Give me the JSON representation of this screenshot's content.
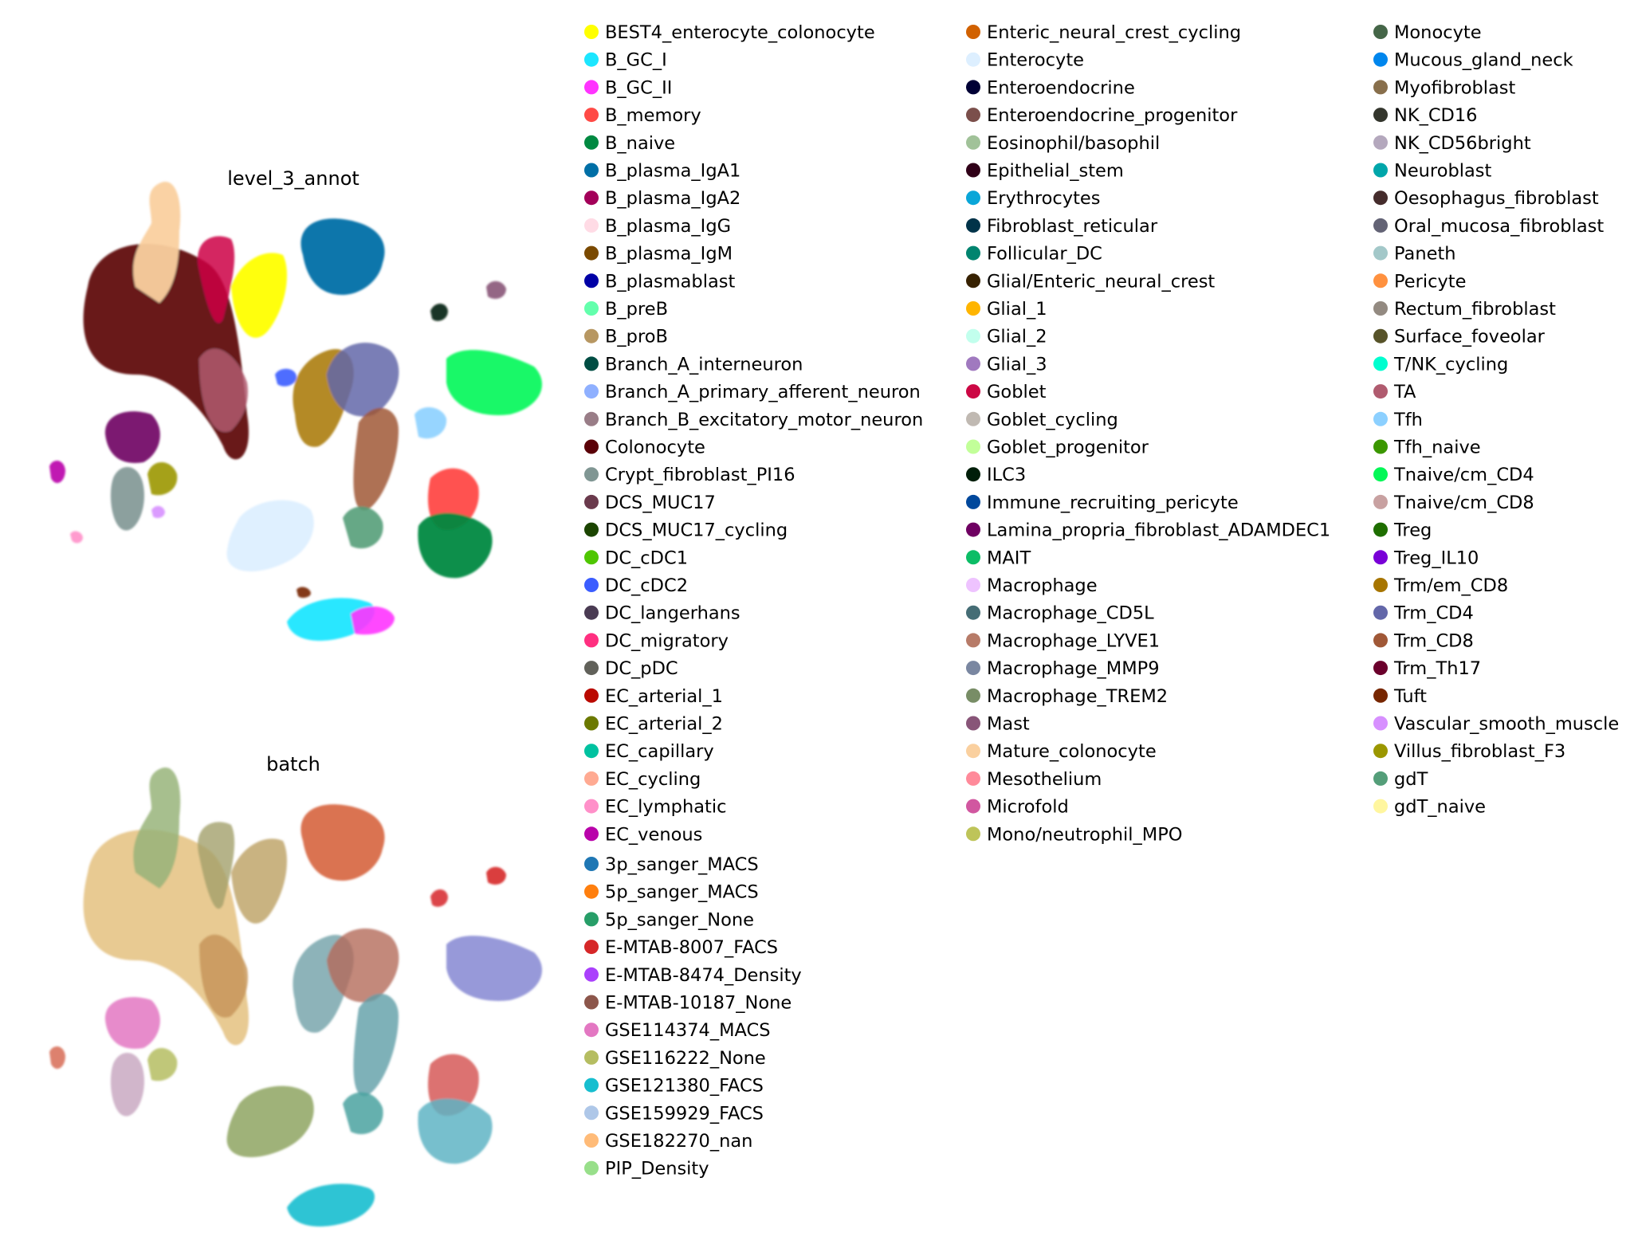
{
  "chart_data": [
    {
      "type": "scatter",
      "title": "level_3_annot",
      "xlabel": "",
      "ylabel": "",
      "grid": false,
      "legend_placement": "right",
      "legend": [
        {
          "label": "BEST4_enterocyte_colonocyte",
          "color": "#FFFF00"
        },
        {
          "label": "B_GC_I",
          "color": "#1CE6FF"
        },
        {
          "label": "B_GC_II",
          "color": "#FF34FF"
        },
        {
          "label": "B_memory",
          "color": "#FF4A46"
        },
        {
          "label": "B_naive",
          "color": "#008941"
        },
        {
          "label": "B_plasma_IgA1",
          "color": "#006FA6"
        },
        {
          "label": "B_plasma_IgA2",
          "color": "#A30059"
        },
        {
          "label": "B_plasma_IgG",
          "color": "#FFDBE5"
        },
        {
          "label": "B_plasma_IgM",
          "color": "#7A4900"
        },
        {
          "label": "B_plasmablast",
          "color": "#0000A6"
        },
        {
          "label": "B_preB",
          "color": "#63FFAC"
        },
        {
          "label": "B_proB",
          "color": "#B79762"
        },
        {
          "label": "Branch_A_interneuron",
          "color": "#004D43"
        },
        {
          "label": "Branch_A_primary_afferent_neuron",
          "color": "#8FB0FF"
        },
        {
          "label": "Branch_B_excitatory_motor_neuron",
          "color": "#997D87"
        },
        {
          "label": "Colonocyte",
          "color": "#5A0007"
        },
        {
          "label": "Crypt_fibroblast_PI16",
          "color": "#809693"
        },
        {
          "label": "DCS_MUC17",
          "color": "#6A3A4C"
        },
        {
          "label": "DCS_MUC17_cycling",
          "color": "#1B4400"
        },
        {
          "label": "DC_cDC1",
          "color": "#4FC601"
        },
        {
          "label": "DC_cDC2",
          "color": "#3B5DFF"
        },
        {
          "label": "DC_langerhans",
          "color": "#4A3B53"
        },
        {
          "label": "DC_migratory",
          "color": "#FF2F80"
        },
        {
          "label": "DC_pDC",
          "color": "#61615A"
        },
        {
          "label": "EC_arterial_1",
          "color": "#BA0900"
        },
        {
          "label": "EC_arterial_2",
          "color": "#6B7900"
        },
        {
          "label": "EC_capillary",
          "color": "#00C2A0"
        },
        {
          "label": "EC_cycling",
          "color": "#FFAA92"
        },
        {
          "label": "EC_lymphatic",
          "color": "#FF90C9"
        },
        {
          "label": "EC_venous",
          "color": "#B903AA"
        },
        {
          "label": "Enteric_neural_crest_cycling",
          "color": "#D16100"
        },
        {
          "label": "Enterocyte",
          "color": "#DDEFFF"
        },
        {
          "label": "Enteroendocrine",
          "color": "#000035"
        },
        {
          "label": "Enteroendocrine_progenitor",
          "color": "#7B4F4B"
        },
        {
          "label": "Eosinophil/basophil",
          "color": "#A1C299"
        },
        {
          "label": "Epithelial_stem",
          "color": "#300018"
        },
        {
          "label": "Erythrocytes",
          "color": "#0AA6D8"
        },
        {
          "label": "Fibroblast_reticular",
          "color": "#013349"
        },
        {
          "label": "Follicular_DC",
          "color": "#00846F"
        },
        {
          "label": "Glial/Enteric_neural_crest",
          "color": "#372101"
        },
        {
          "label": "Glial_1",
          "color": "#FFB500"
        },
        {
          "label": "Glial_2",
          "color": "#C2FFED"
        },
        {
          "label": "Glial_3",
          "color": "#A079BF"
        },
        {
          "label": "Goblet",
          "color": "#CC0744"
        },
        {
          "label": "Goblet_cycling",
          "color": "#C0B9B2"
        },
        {
          "label": "Goblet_progenitor",
          "color": "#C2FF99"
        },
        {
          "label": "ILC3",
          "color": "#001E09"
        },
        {
          "label": "Immune_recruiting_pericyte",
          "color": "#00489C"
        },
        {
          "label": "Lamina_propria_fibroblast_ADAMDEC1",
          "color": "#6F0062"
        },
        {
          "label": "MAIT",
          "color": "#0CBD66"
        },
        {
          "label": "Macrophage",
          "color": "#EEC3FF"
        },
        {
          "label": "Macrophage_CD5L",
          "color": "#456D75"
        },
        {
          "label": "Macrophage_LYVE1",
          "color": "#B77B68"
        },
        {
          "label": "Macrophage_MMP9",
          "color": "#7A87A1"
        },
        {
          "label": "Macrophage_TREM2",
          "color": "#788D66"
        },
        {
          "label": "Mast",
          "color": "#885578"
        },
        {
          "label": "Mature_colonocyte",
          "color": "#FAD09F"
        },
        {
          "label": "Mesothelium",
          "color": "#FF8A9A"
        },
        {
          "label": "Microfold",
          "color": "#D157A0"
        },
        {
          "label": "Mono/neutrophil_MPO",
          "color": "#BEC459"
        },
        {
          "label": "Monocyte",
          "color": "#456648"
        },
        {
          "label": "Mucous_gland_neck",
          "color": "#0086ED"
        },
        {
          "label": "Myofibroblast",
          "color": "#886F4C"
        },
        {
          "label": "NK_CD16",
          "color": "#34362D"
        },
        {
          "label": "NK_CD56bright",
          "color": "#B4A8BD"
        },
        {
          "label": "Neuroblast",
          "color": "#00A6AA"
        },
        {
          "label": "Oesophagus_fibroblast",
          "color": "#452C2C"
        },
        {
          "label": "Oral_mucosa_fibroblast",
          "color": "#636375"
        },
        {
          "label": "Paneth",
          "color": "#A3C8C9"
        },
        {
          "label": "Pericyte",
          "color": "#FF913F"
        },
        {
          "label": "Rectum_fibroblast",
          "color": "#938A81"
        },
        {
          "label": "Surface_foveolar",
          "color": "#575329"
        },
        {
          "label": "T/NK_cycling",
          "color": "#00FECF"
        },
        {
          "label": "TA",
          "color": "#B05B6F"
        },
        {
          "label": "Tfh",
          "color": "#8CD0FF"
        },
        {
          "label": "Tfh_naive",
          "color": "#3B9700"
        },
        {
          "label": "Tnaive/cm_CD4",
          "color": "#04F757"
        },
        {
          "label": "Tnaive/cm_CD8",
          "color": "#C8A1A1"
        },
        {
          "label": "Treg",
          "color": "#1E6E00"
        },
        {
          "label": "Treg_IL10",
          "color": "#7900D7"
        },
        {
          "label": "Trm/em_CD8",
          "color": "#A77500"
        },
        {
          "label": "Trm_CD4",
          "color": "#6367A9"
        },
        {
          "label": "Trm_CD8",
          "color": "#A05837"
        },
        {
          "label": "Trm_Th17",
          "color": "#6B002C"
        },
        {
          "label": "Tuft",
          "color": "#772600"
        },
        {
          "label": "Vascular_smooth_muscle",
          "color": "#D790FF"
        },
        {
          "label": "Villus_fibroblast_F3",
          "color": "#9B9700"
        },
        {
          "label": "gdT",
          "color": "#549E79"
        },
        {
          "label": "gdT_naive",
          "color": "#FFF69F"
        }
      ]
    },
    {
      "type": "scatter",
      "title": "batch",
      "xlabel": "",
      "ylabel": "",
      "grid": false,
      "legend_placement": "right",
      "legend": [
        {
          "label": "3p_sanger_MACS",
          "color": "#1f77b4"
        },
        {
          "label": "5p_sanger_MACS",
          "color": "#ff7f0e"
        },
        {
          "label": "5p_sanger_None",
          "color": "#279e68"
        },
        {
          "label": "E-MTAB-8007_FACS",
          "color": "#d62728"
        },
        {
          "label": "E-MTAB-8474_Density",
          "color": "#aa40fc"
        },
        {
          "label": "E-MTAB-10187_None",
          "color": "#8c564b"
        },
        {
          "label": "GSE114374_MACS",
          "color": "#e377c2"
        },
        {
          "label": "GSE116222_None",
          "color": "#b5bd61"
        },
        {
          "label": "GSE121380_FACS",
          "color": "#17becf"
        },
        {
          "label": "GSE159929_FACS",
          "color": "#aec7e8"
        },
        {
          "label": "GSE182270_nan",
          "color": "#ffbb78"
        },
        {
          "label": "PIP_Density",
          "color": "#98df8a"
        }
      ]
    }
  ]
}
